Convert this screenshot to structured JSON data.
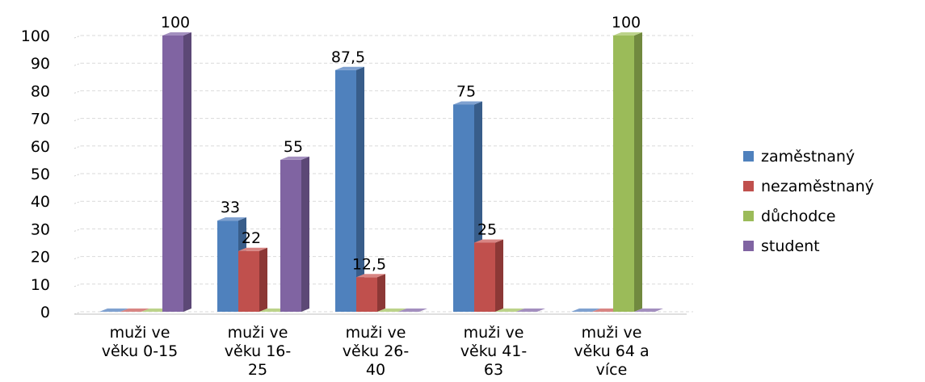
{
  "chart_data": {
    "type": "bar",
    "title": "",
    "xlabel": "",
    "ylabel": "",
    "ylim": [
      0,
      100
    ],
    "yticks": [
      0,
      10,
      20,
      30,
      40,
      50,
      60,
      70,
      80,
      90,
      100
    ],
    "grid": true,
    "style": "3d-clustered-column",
    "legend_position": "right",
    "categories": [
      [
        "muži ve",
        "věku 0-15"
      ],
      [
        "muži ve",
        "věku 16-",
        "25"
      ],
      [
        "muži ve",
        "věku 26-",
        "40"
      ],
      [
        "muži ve",
        "věku 41-",
        "63"
      ],
      [
        "muži ve",
        "věku 64 a",
        "více"
      ]
    ],
    "series": [
      {
        "name": "zaměstnaný",
        "color": "#4F81BD",
        "side": "#385D8A",
        "top": "#7FA1D0",
        "values": [
          0,
          33,
          87.5,
          75,
          0
        ],
        "labels": [
          "",
          "33",
          "87,5",
          "75",
          ""
        ]
      },
      {
        "name": "nezaměstnaný",
        "color": "#C0504D",
        "side": "#8C3836",
        "top": "#D88583",
        "values": [
          0,
          22,
          12.5,
          25,
          0
        ],
        "labels": [
          "",
          "22",
          "12,5",
          "25",
          ""
        ]
      },
      {
        "name": "důchodce",
        "color": "#9BBB59",
        "side": "#71893F",
        "top": "#BCD38A",
        "values": [
          0,
          0,
          0,
          0,
          100
        ],
        "labels": [
          "",
          "",
          "",
          "",
          "100"
        ]
      },
      {
        "name": "student",
        "color": "#8064A2",
        "side": "#5C4876",
        "top": "#A38FBF",
        "values": [
          100,
          55,
          0,
          0,
          0
        ],
        "labels": [
          "100",
          "55",
          "",
          "",
          ""
        ]
      }
    ]
  }
}
